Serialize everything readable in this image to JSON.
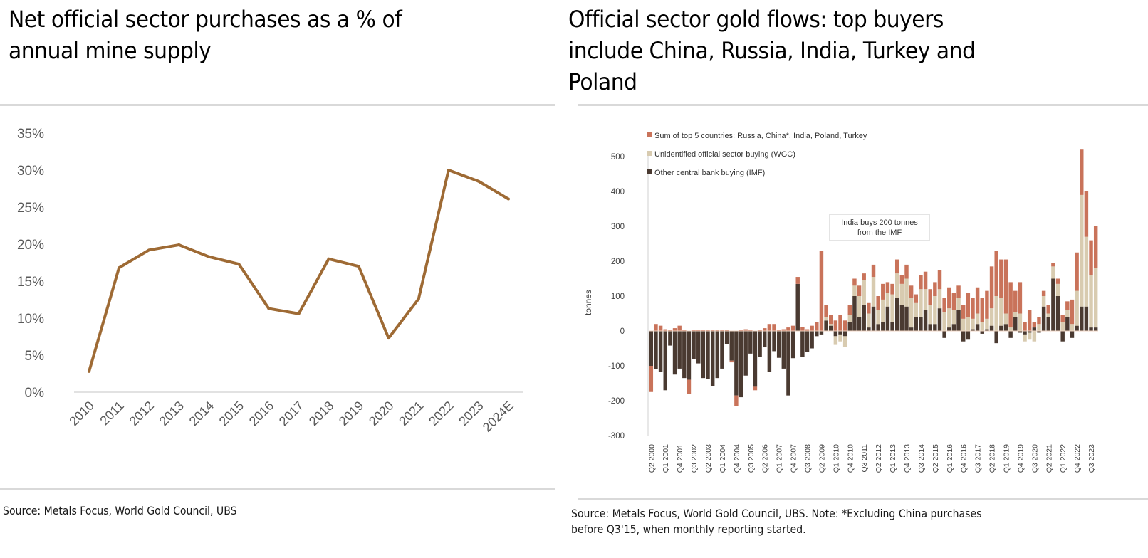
{
  "left_panel": {
    "title_line1": "Net official sector purchases as a % of",
    "title_line2": "annual mine supply",
    "source": "Source: Metals Focus, World Gold Council, UBS"
  },
  "right_panel": {
    "title_line1": "Official sector gold flows: top buyers",
    "title_line2": "include China, Russia, India, Turkey and",
    "title_line3": "Poland",
    "source_line1": "Source: Metals Focus, World Gold Council, UBS. Note: *Excluding China purchases",
    "source_line2": "before Q3'15, when monthly reporting started."
  },
  "colors": {
    "line": "#9E6A34",
    "top5": "#C9735A",
    "unidentified": "#D8CBB0",
    "other_cb": "#4A3A31",
    "axis_text": "#595959",
    "gridline": "#d9d9d9"
  },
  "chart_data": [
    {
      "type": "line",
      "title": "Net official sector purchases as a % of annual mine supply",
      "xlabel": "",
      "ylabel": "",
      "categories": [
        "2010",
        "2011",
        "2012",
        "2013",
        "2014",
        "2015",
        "2016",
        "2017",
        "2018",
        "2019",
        "2020",
        "2021",
        "2022",
        "2023",
        "2024E"
      ],
      "series": [
        {
          "name": "Net official sector purchases (% of mine supply)",
          "values": [
            2.8,
            16.8,
            19.2,
            19.9,
            18.3,
            17.3,
            11.3,
            10.6,
            18.0,
            17.0,
            7.3,
            12.6,
            30.0,
            28.5,
            26.1
          ]
        }
      ],
      "ylim": [
        0,
        35
      ],
      "yticks": [
        0,
        5,
        10,
        15,
        20,
        25,
        30,
        35
      ],
      "ytick_labels": [
        "0%",
        "5%",
        "10%",
        "15%",
        "20%",
        "25%",
        "30%",
        "35%"
      ],
      "grid": false,
      "legend": "none"
    },
    {
      "type": "bar",
      "stacked": true,
      "title": "Official sector gold flows: top buyers include China, Russia, India, Turkey and Poland",
      "xlabel": "",
      "ylabel": "tonnes",
      "ylim": [
        -300,
        500
      ],
      "yticks": [
        -300,
        -200,
        -100,
        0,
        100,
        200,
        300,
        400,
        500
      ],
      "ytick_labels": [
        "-300",
        "-200",
        "-100",
        "0",
        "100",
        "200",
        "300",
        "400",
        "500"
      ],
      "legend": "top-left",
      "legend_entries": [
        "Sum of top 5 countries: Russia, China*, India, Poland, Turkey",
        "Unidentified official sector buying (WGC)",
        "Other central bank buying (IMF)"
      ],
      "annotation": {
        "text_line1": "India buys 200 tonnes",
        "text_line2": "from the IMF",
        "target_category": "Q4 2009"
      },
      "x_tick_labels": [
        "Q2 2000",
        "Q1 2001",
        "Q4 2001",
        "Q3 2002",
        "Q2 2003",
        "Q1 2004",
        "Q4 2004",
        "Q3 2005",
        "Q2 2006",
        "Q1 2007",
        "Q4 2007",
        "Q3 2008",
        "Q2 2009",
        "Q1 2010",
        "Q4 2010",
        "Q3 2011",
        "Q2 2012",
        "Q1 2013",
        "Q4 2013",
        "Q3 2014",
        "Q2 2015",
        "Q1 2016",
        "Q4 2016",
        "Q3 2017",
        "Q2 2018",
        "Q1 2019",
        "Q4 2019",
        "Q3 2020",
        "Q2 2021",
        "Q1 2022",
        "Q4 2022",
        "Q3 2023"
      ],
      "series": [
        {
          "name": "Sum of top 5 countries: Russia, China*, India, Poland, Turkey",
          "values": [
            -75,
            20,
            15,
            5,
            3,
            8,
            15,
            2,
            -40,
            3,
            3,
            2,
            2,
            2,
            2,
            2,
            3,
            -5,
            -30,
            3,
            5,
            2,
            -10,
            3,
            8,
            20,
            20,
            3,
            5,
            10,
            15,
            20,
            12,
            5,
            15,
            25,
            230,
            35,
            25,
            30,
            45,
            30,
            30,
            20,
            30,
            20,
            30,
            35,
            40,
            45,
            30,
            30,
            40,
            25,
            40,
            35,
            25,
            40,
            50,
            45,
            40,
            55,
            40,
            60,
            50,
            35,
            40,
            70,
            60,
            75,
            70,
            80,
            120,
            130,
            110,
            155,
            130,
            60,
            90,
            25,
            60,
            15,
            20,
            15,
            25,
            10,
            15,
            20,
            25,
            70,
            110,
            130,
            130,
            100,
            120
          ]
        },
        {
          "name": "Unidentified official sector buying (WGC)",
          "values": [
            0,
            0,
            0,
            0,
            0,
            0,
            0,
            0,
            0,
            0,
            0,
            0,
            0,
            0,
            0,
            0,
            0,
            0,
            0,
            0,
            0,
            0,
            0,
            0,
            0,
            0,
            0,
            0,
            0,
            0,
            0,
            0,
            0,
            0,
            0,
            0,
            0,
            10,
            5,
            -25,
            -20,
            -30,
            20,
            30,
            60,
            70,
            40,
            85,
            40,
            65,
            40,
            80,
            70,
            60,
            80,
            85,
            40,
            80,
            60,
            55,
            80,
            55,
            55,
            55,
            40,
            35,
            35,
            40,
            30,
            30,
            25,
            30,
            50,
            100,
            80,
            30,
            10,
            15,
            50,
            -20,
            -20,
            -30,
            20,
            30,
            10,
            35,
            35,
            25,
            20,
            20,
            100,
            320,
            200,
            150,
            170
          ]
        },
        {
          "name": "Other central bank buying (IMF)",
          "values": [
            -100,
            -110,
            -118,
            -170,
            -42,
            -125,
            -108,
            -135,
            -140,
            -80,
            -93,
            -135,
            -137,
            -158,
            -135,
            -108,
            -38,
            -85,
            -185,
            -190,
            -128,
            -65,
            -160,
            -75,
            -47,
            -118,
            -58,
            -77,
            -108,
            -185,
            -78,
            135,
            -75,
            -60,
            -50,
            -15,
            -10,
            30,
            15,
            -15,
            -10,
            -15,
            25,
            100,
            40,
            75,
            10,
            70,
            20,
            25,
            70,
            25,
            95,
            75,
            70,
            10,
            40,
            40,
            60,
            20,
            20,
            65,
            -20,
            10,
            20,
            60,
            -30,
            -25,
            5,
            20,
            -8,
            5,
            15,
            -35,
            15,
            20,
            -20,
            40,
            -5,
            -10,
            -5,
            10,
            -5,
            70,
            40,
            150,
            100,
            -30,
            40,
            -20,
            15,
            70,
            70,
            10,
            10
          ]
        }
      ]
    }
  ]
}
